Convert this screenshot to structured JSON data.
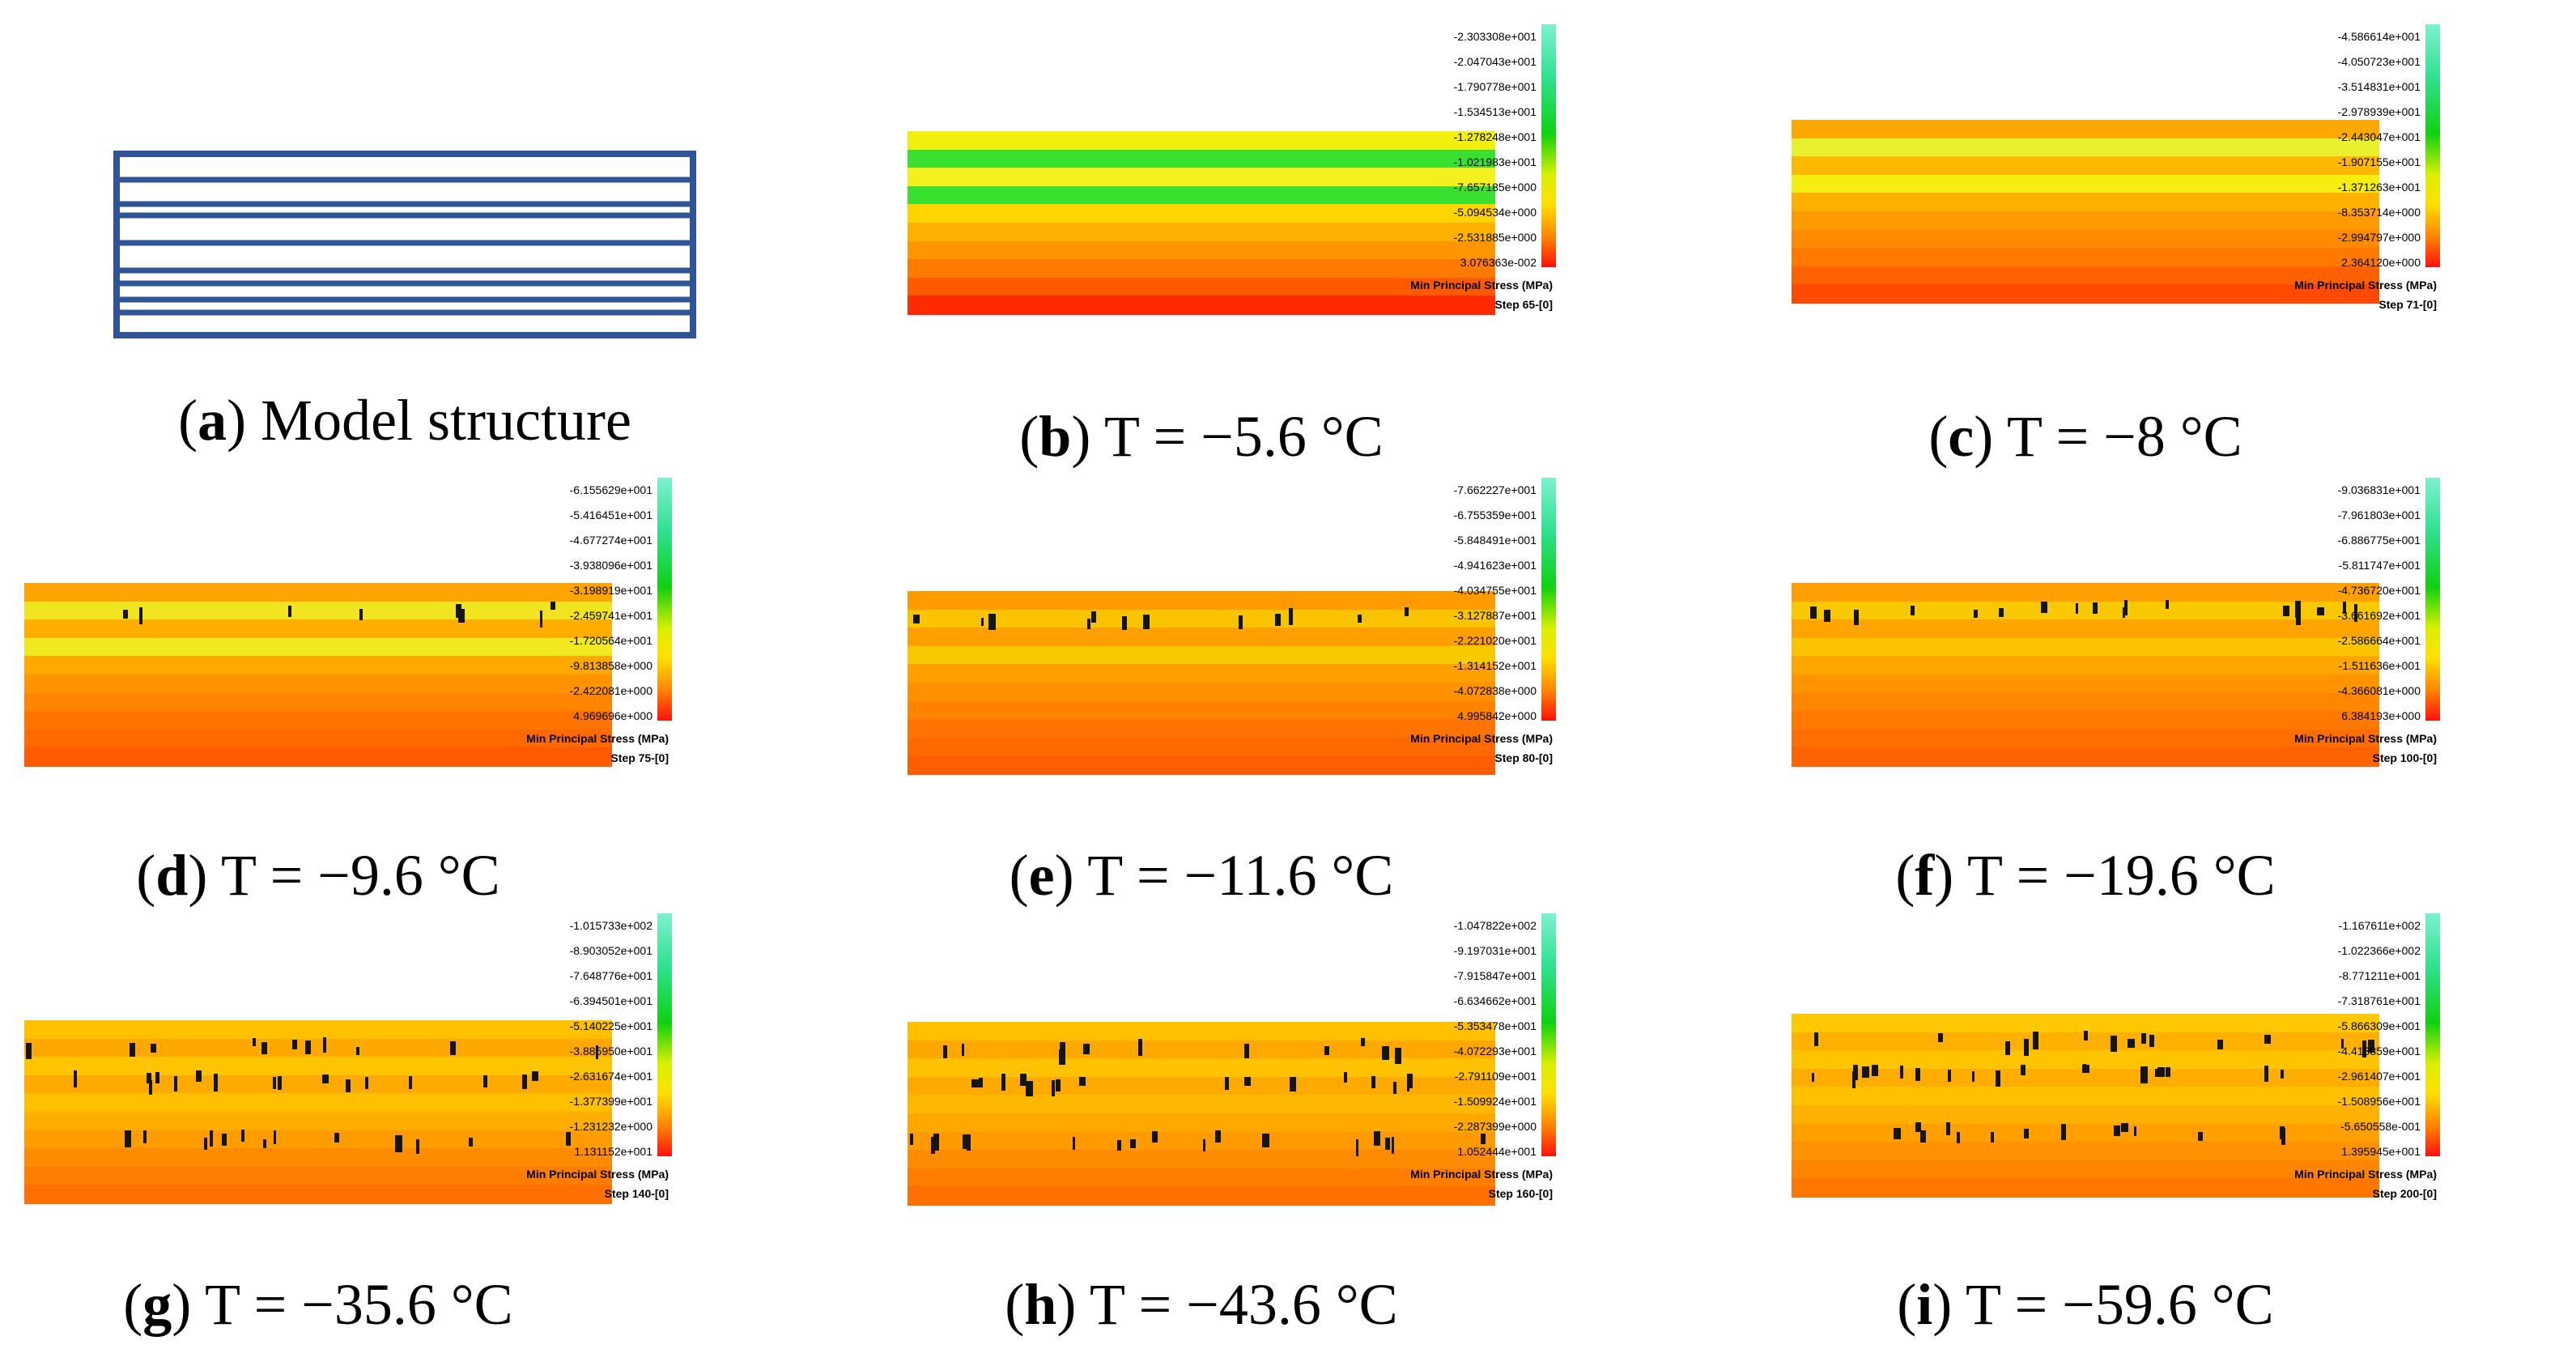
{
  "model": {
    "caption_letter": "a",
    "caption_text": "Model structure",
    "colors": {
      "frame": "#2f5597"
    }
  },
  "panels": [
    {
      "id": "b",
      "letter": "b",
      "caption": "T = −5.6 °C",
      "legend_title": "Min Principal Stress (MPa)",
      "step": "Step 65-[0]",
      "scale": [
        "-2.303308e+001",
        "-2.047043e+001",
        "-1.790778e+001",
        "-1.534513e+001",
        "-1.278248e+001",
        "-1.021983e+001",
        "-7.657185e+000",
        "-5.094534e+000",
        "-2.531885e+000",
        "3.076363e-002"
      ],
      "bands": [
        "#f2ee10",
        "#3ae030",
        "#f4f020",
        "#3ae030",
        "#ffd400",
        "#ffb000",
        "#ff9500",
        "#ff7a00",
        "#ff5a00",
        "#ff2a00"
      ],
      "cracks": 0
    },
    {
      "id": "c",
      "letter": "c",
      "caption": "T = −8 °C",
      "legend_title": "Min Principal Stress (MPa)",
      "step": "Step 71-[0]",
      "scale": [
        "-4.586614e+001",
        "-4.050723e+001",
        "-3.514831e+001",
        "-2.978939e+001",
        "-2.443047e+001",
        "-1.907155e+001",
        "-1.371263e+001",
        "-8.353714e+000",
        "-2.994797e+000",
        "2.364120e+000"
      ],
      "bands": [
        "#ffa800",
        "#e8f030",
        "#ffb800",
        "#f5ee10",
        "#ffb000",
        "#ff9a00",
        "#ff8a00",
        "#ff7800",
        "#ff6000",
        "#ff4a00"
      ],
      "cracks": 0
    },
    {
      "id": "d",
      "letter": "d",
      "caption": "T = −9.6 °C",
      "legend_title": "Min Principal Stress (MPa)",
      "step": "Step 75-[0]",
      "scale": [
        "-6.155629e+001",
        "-5.416451e+001",
        "-4.677274e+001",
        "-3.938096e+001",
        "-3.198919e+001",
        "-2.459741e+001",
        "-1.720564e+001",
        "-9.813858e+000",
        "-2.422081e+000",
        "4.969696e+000"
      ],
      "bands": [
        "#ffa400",
        "#f2e420",
        "#ffae00",
        "#f0e820",
        "#ffa800",
        "#ff9400",
        "#ff8400",
        "#ff7400",
        "#ff6a00",
        "#ff5a00"
      ],
      "cracks": 8
    },
    {
      "id": "e",
      "letter": "e",
      "caption": "T = −11.6 °C",
      "legend_title": "Min Principal Stress (MPa)",
      "step": "Step 80-[0]",
      "scale": [
        "-7.662227e+001",
        "-6.755359e+001",
        "-5.848491e+001",
        "-4.941623e+001",
        "-4.034755e+001",
        "-3.127887e+001",
        "-2.221020e+001",
        "-1.314152e+001",
        "-4.072838e+000",
        "4.995842e+000"
      ],
      "bands": [
        "#ff9a00",
        "#f8c400",
        "#ffa000",
        "#f8c800",
        "#ffa000",
        "#ff9000",
        "#ff8200",
        "#ff7400",
        "#ff6a00",
        "#ff5e00"
      ],
      "cracks": 12
    },
    {
      "id": "f",
      "letter": "f",
      "caption": "T = −19.6 °C",
      "legend_title": "Min Principal Stress (MPa)",
      "step": "Step 100-[0]",
      "scale": [
        "-9.036831e+001",
        "-7.961803e+001",
        "-6.886775e+001",
        "-5.811747e+001",
        "-4.736720e+001",
        "-3.661692e+001",
        "-2.586664e+001",
        "-1.511636e+001",
        "-4.366081e+000",
        "6.384193e+000"
      ],
      "bands": [
        "#ffa000",
        "#fac800",
        "#ffa400",
        "#fac400",
        "#ffa600",
        "#ff9400",
        "#ff8600",
        "#ff7800",
        "#ff6e00",
        "#ff6200"
      ],
      "cracks": 18
    },
    {
      "id": "g",
      "letter": "g",
      "caption": "T = −35.6 °C",
      "legend_title": "Min Principal Stress (MPa)",
      "step": "Step 140-[0]",
      "scale": [
        "-1.015733e+002",
        "-8.903052e+001",
        "-7.648776e+001",
        "-6.394501e+001",
        "-5.140225e+001",
        "-3.885950e+001",
        "-2.631674e+001",
        "-1.377399e+001",
        "-1.231232e+000",
        "1.131152e+001"
      ],
      "bands": [
        "#ffc000",
        "#ffa800",
        "#ffc400",
        "#ffaa00",
        "#ffc000",
        "#ffae00",
        "#ff9c00",
        "#ff8c00",
        "#ff7e00",
        "#ff7000"
      ],
      "cracks": 40
    },
    {
      "id": "h",
      "letter": "h",
      "caption": "T = −43.6 °C",
      "legend_title": "Min Principal Stress (MPa)",
      "step": "Step 160-[0]",
      "scale": [
        "-1.047822e+002",
        "-9.197031e+001",
        "-7.915847e+001",
        "-6.634662e+001",
        "-5.353478e+001",
        "-4.072293e+001",
        "-2.791109e+001",
        "-1.509924e+001",
        "-2.287399e+000",
        "1.052444e+001"
      ],
      "bands": [
        "#ffc000",
        "#ffa800",
        "#ffc200",
        "#ffaa00",
        "#ffb800",
        "#ffa800",
        "#ff9a00",
        "#ff8c00",
        "#ff7e00",
        "#ff7000"
      ],
      "cracks": 44
    },
    {
      "id": "i",
      "letter": "i",
      "caption": "T = −59.6 °C",
      "legend_title": "Min Principal Stress (MPa)",
      "step": "Step 200-[0]",
      "scale": [
        "-1.167611e+002",
        "-1.022366e+002",
        "-8.771211e+001",
        "-7.318761e+001",
        "-5.866309e+001",
        "-4.413859e+001",
        "-2.961407e+001",
        "-1.508956e+001",
        "-5.650558e-001",
        "1.395945e+001"
      ],
      "bands": [
        "#ffc800",
        "#ffb000",
        "#ffc400",
        "#ffae00",
        "#ffc000",
        "#ffb000",
        "#ffa000",
        "#ff9200",
        "#ff8400",
        "#ff7600"
      ],
      "cracks": 48
    }
  ]
}
